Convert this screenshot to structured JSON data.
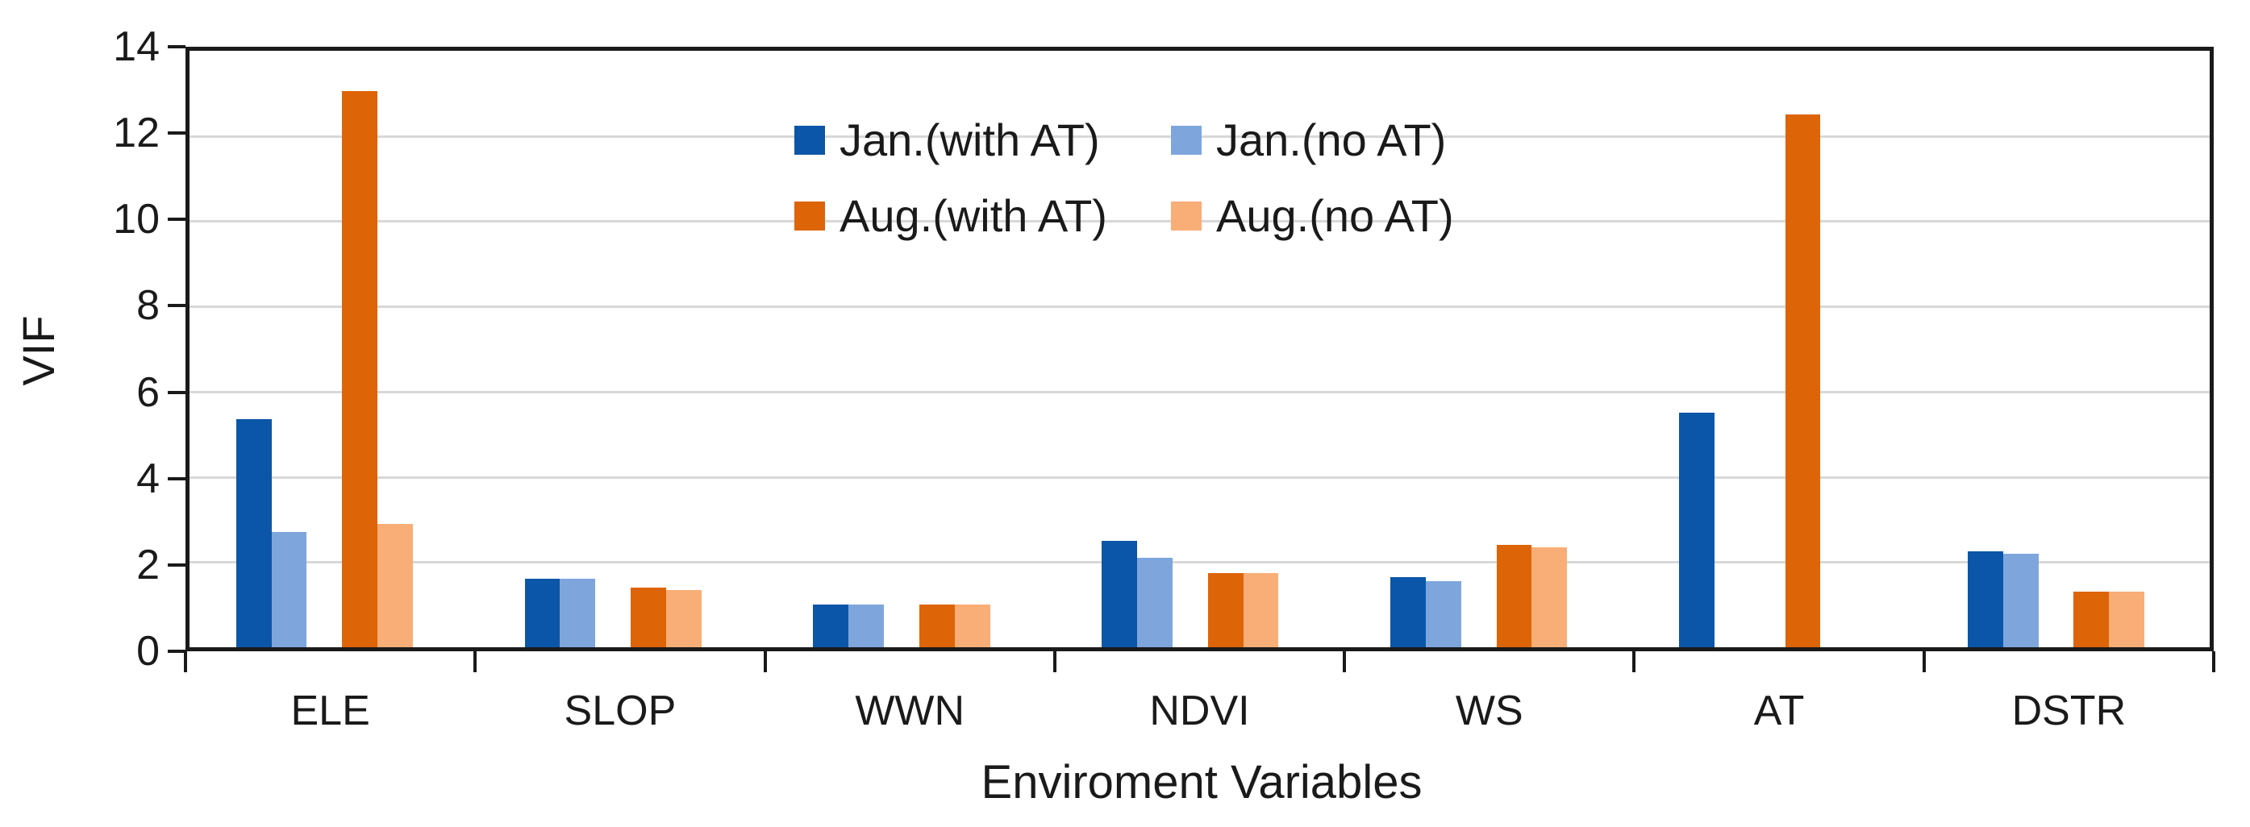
{
  "chart_data": {
    "type": "bar",
    "title": "",
    "categories": [
      "ELE",
      "SLOP",
      "WWN",
      "NDVI",
      "WS",
      "AT",
      "DSTR"
    ],
    "series": [
      {
        "name": "Jan.(with AT)",
        "color": "#0B56A8",
        "values": [
          5.35,
          1.6,
          1.0,
          2.5,
          1.65,
          5.5,
          2.25
        ]
      },
      {
        "name": "Jan.(no AT)",
        "color": "#7EA6DD",
        "values": [
          2.7,
          1.6,
          1.0,
          2.1,
          1.55,
          null,
          2.2
        ]
      },
      {
        "name": "Aug.(with AT)",
        "color": "#DE6408",
        "values": [
          13.05,
          1.4,
          1.0,
          1.75,
          2.4,
          12.5,
          1.3
        ]
      },
      {
        "name": "Aug.(no AT)",
        "color": "#F9AE77",
        "values": [
          2.9,
          1.35,
          1.0,
          1.75,
          2.35,
          null,
          1.3
        ]
      }
    ],
    "xlabel": "Enviroment Variables",
    "ylabel": "VIF",
    "ylim": [
      0,
      14
    ],
    "yticks": [
      0,
      2,
      4,
      6,
      8,
      10,
      12,
      14
    ],
    "grid": "horizontal-light-gray",
    "gridline_color": "#d8d8d8",
    "axis_color": "#1a1a1a",
    "legend_position": "inside-top-center",
    "legend_rows": [
      [
        "Jan.(with AT)",
        "Jan.(no AT)"
      ],
      [
        "Aug.(with AT)",
        "Aug.(no AT)"
      ]
    ]
  }
}
